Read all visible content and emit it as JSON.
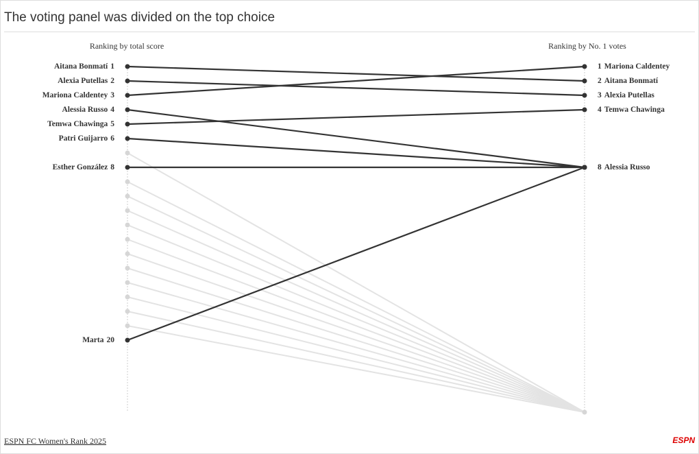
{
  "chart_data": {
    "type": "slope",
    "title": "The voting panel was divided on the top choice",
    "left_header": "Ranking by total score",
    "right_header": "Ranking by No. 1 votes",
    "source": "ESPN FC Women's Rank 2025",
    "logo": "ESPN",
    "ylim": [
      1,
      25
    ],
    "color": "#333333",
    "muted_color": "#e3e3e3",
    "players": [
      {
        "name": "Aitana Bonmatí",
        "left": 1,
        "right": 2
      },
      {
        "name": "Alexia Putellas",
        "left": 2,
        "right": 3
      },
      {
        "name": "Mariona Caldentey",
        "left": 3,
        "right": 1
      },
      {
        "name": "Alessia Russo",
        "left": 4,
        "right": 8
      },
      {
        "name": "Temwa Chawinga",
        "left": 5,
        "right": 4
      },
      {
        "name": "Patri Guijarro",
        "left": 6,
        "right": 8
      },
      {
        "name": null,
        "left": 7,
        "right": null
      },
      {
        "name": "Esther González",
        "left": 8,
        "right": 8
      },
      {
        "name": null,
        "left": 9,
        "right": null
      },
      {
        "name": null,
        "left": 10,
        "right": null
      },
      {
        "name": null,
        "left": 11,
        "right": null
      },
      {
        "name": null,
        "left": 12,
        "right": null
      },
      {
        "name": null,
        "left": 13,
        "right": null
      },
      {
        "name": null,
        "left": 14,
        "right": null
      },
      {
        "name": null,
        "left": 15,
        "right": null
      },
      {
        "name": null,
        "left": 16,
        "right": null
      },
      {
        "name": null,
        "left": 17,
        "right": null
      },
      {
        "name": null,
        "left": 18,
        "right": null
      },
      {
        "name": null,
        "left": 19,
        "right": null
      },
      {
        "name": "Marta",
        "left": 20,
        "right": 8
      }
    ],
    "right_labels": [
      {
        "rank": 1,
        "name": "Mariona Caldentey"
      },
      {
        "rank": 2,
        "name": "Aitana Bonmatí"
      },
      {
        "rank": 3,
        "name": "Alexia Putellas"
      },
      {
        "rank": 4,
        "name": "Temwa Chawinga"
      },
      {
        "rank": 8,
        "name": "Alessia Russo"
      }
    ]
  }
}
